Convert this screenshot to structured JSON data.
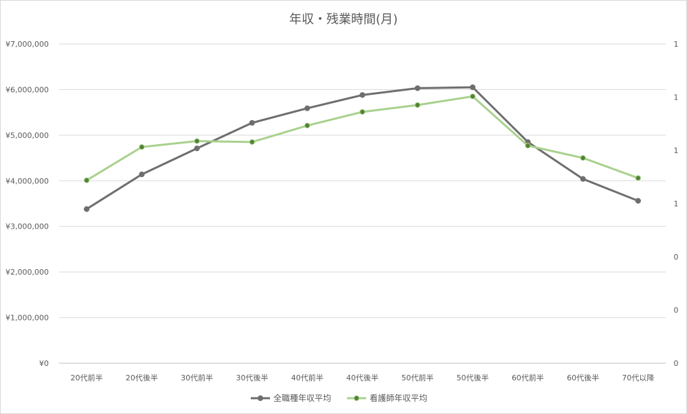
{
  "chart_data": {
    "type": "line",
    "title": "年収・残業時間(月)",
    "categories": [
      "20代前半",
      "20代後半",
      "30代前半",
      "30代後半",
      "40代前半",
      "40代後半",
      "50代前半",
      "50代後半",
      "60代前半",
      "60代後半",
      "70代以降"
    ],
    "series": [
      {
        "name": "全職種年収平均",
        "color": "#6e6e6e",
        "marker_color": "#6e6e6e",
        "values": [
          3380000,
          4140000,
          4710000,
          5270000,
          5590000,
          5880000,
          6030000,
          6050000,
          4850000,
          4040000,
          3560000
        ]
      },
      {
        "name": "看護師年収平均",
        "color": "#a9d18e",
        "marker_color": "#548235",
        "values": [
          4010000,
          4740000,
          4870000,
          4850000,
          5210000,
          5510000,
          5660000,
          5850000,
          4770000,
          4500000,
          4060000
        ]
      }
    ],
    "ylim": [
      0,
      7000000
    ],
    "y_ticks": [
      "¥0",
      "¥1,000,000",
      "¥2,000,000",
      "¥3,000,000",
      "¥4,000,000",
      "¥5,000,000",
      "¥6,000,000",
      "¥7,000,000"
    ],
    "y2_ticks": [
      "0",
      "0",
      "0",
      "1",
      "1",
      "1",
      "1"
    ],
    "grid": true,
    "legend_position": "bottom"
  }
}
